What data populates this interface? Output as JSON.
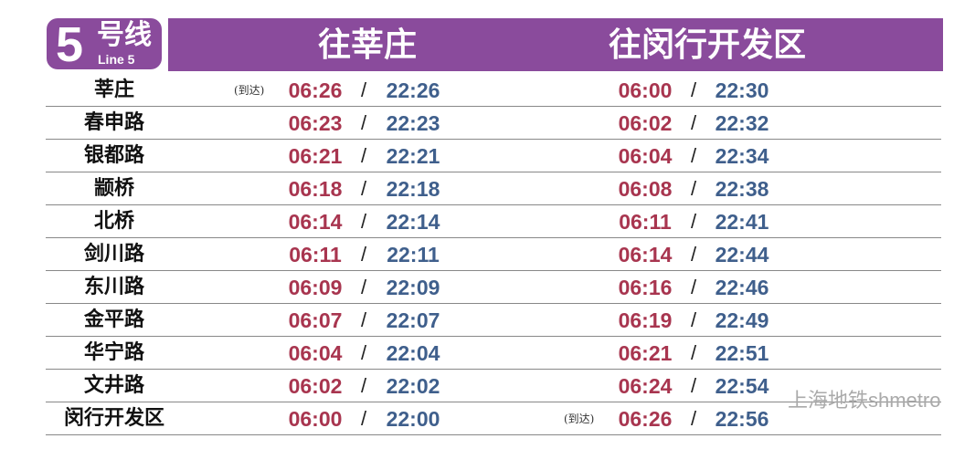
{
  "line": {
    "number": "5",
    "name_cn": "号线",
    "name_en": "Line 5",
    "color": "#8a4b9c"
  },
  "directions": [
    "往莘庄",
    "往闵行开发区"
  ],
  "arrival_label": "(到达)",
  "separator": "/",
  "rows": [
    {
      "station": "莘庄",
      "d1_first": "06:26",
      "d1_last": "22:26",
      "d1_arrival": true,
      "d2_first": "06:00",
      "d2_last": "22:30"
    },
    {
      "station": "春申路",
      "d1_first": "06:23",
      "d1_last": "22:23",
      "d2_first": "06:02",
      "d2_last": "22:32"
    },
    {
      "station": "银都路",
      "d1_first": "06:21",
      "d1_last": "22:21",
      "d2_first": "06:04",
      "d2_last": "22:34"
    },
    {
      "station": "颛桥",
      "d1_first": "06:18",
      "d1_last": "22:18",
      "d2_first": "06:08",
      "d2_last": "22:38"
    },
    {
      "station": "北桥",
      "d1_first": "06:14",
      "d1_last": "22:14",
      "d2_first": "06:11",
      "d2_last": "22:41"
    },
    {
      "station": "剑川路",
      "d1_first": "06:11",
      "d1_last": "22:11",
      "d2_first": "06:14",
      "d2_last": "22:44"
    },
    {
      "station": "东川路",
      "d1_first": "06:09",
      "d1_last": "22:09",
      "d2_first": "06:16",
      "d2_last": "22:46"
    },
    {
      "station": "金平路",
      "d1_first": "06:07",
      "d1_last": "22:07",
      "d2_first": "06:19",
      "d2_last": "22:49"
    },
    {
      "station": "华宁路",
      "d1_first": "06:04",
      "d1_last": "22:04",
      "d2_first": "06:21",
      "d2_last": "22:51"
    },
    {
      "station": "文井路",
      "d1_first": "06:02",
      "d1_last": "22:02",
      "d2_first": "06:24",
      "d2_last": "22:54"
    },
    {
      "station": "闵行开发区",
      "d1_first": "06:00",
      "d1_last": "22:00",
      "d2_first": "06:26",
      "d2_last": "22:56",
      "d2_arrival": true
    }
  ],
  "watermark": "上海地铁shmetro",
  "colors": {
    "first_train": "#a8354f",
    "last_train": "#3f5f8c"
  }
}
